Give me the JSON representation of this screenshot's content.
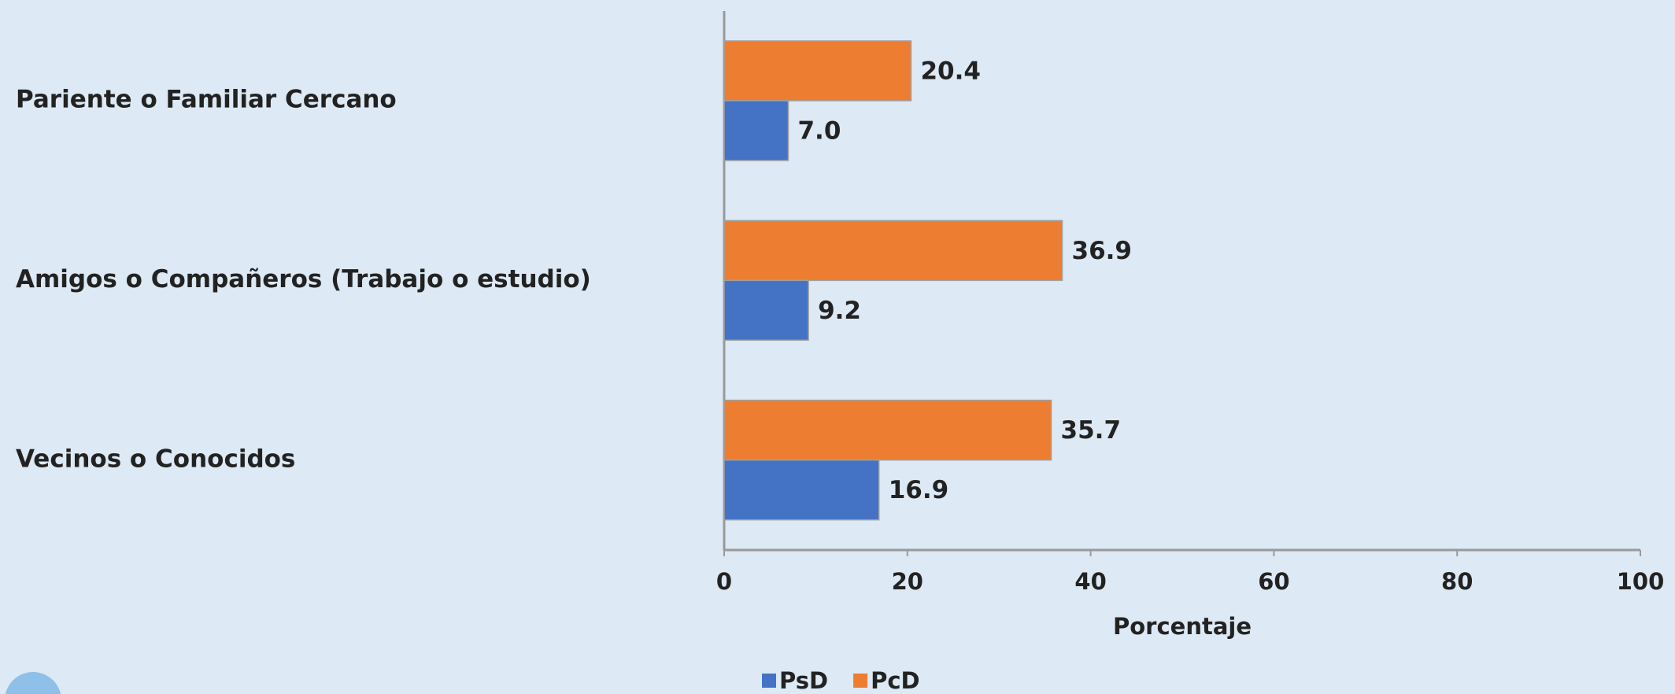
{
  "chart_data": {
    "type": "bar",
    "orientation": "horizontal",
    "categories": [
      "Pariente o Familiar Cercano",
      "Amigos o Compañeros (Trabajo o estudio)",
      "Vecinos o Conocidos"
    ],
    "series": [
      {
        "name": "PsD",
        "color": "#4472c4",
        "values": [
          7.0,
          9.2,
          16.9
        ],
        "value_labels": [
          "7.0",
          "9.2",
          "16.9"
        ]
      },
      {
        "name": "PcD",
        "color": "#ed7d31",
        "values": [
          20.4,
          36.9,
          35.7
        ],
        "value_labels": [
          "20.4",
          "36.9",
          "35.7"
        ]
      }
    ],
    "xlabel": "Porcentaje",
    "xlim": [
      0,
      100
    ],
    "xticks": [
      0,
      20,
      40,
      60,
      80,
      100
    ],
    "legend": "bottom"
  }
}
